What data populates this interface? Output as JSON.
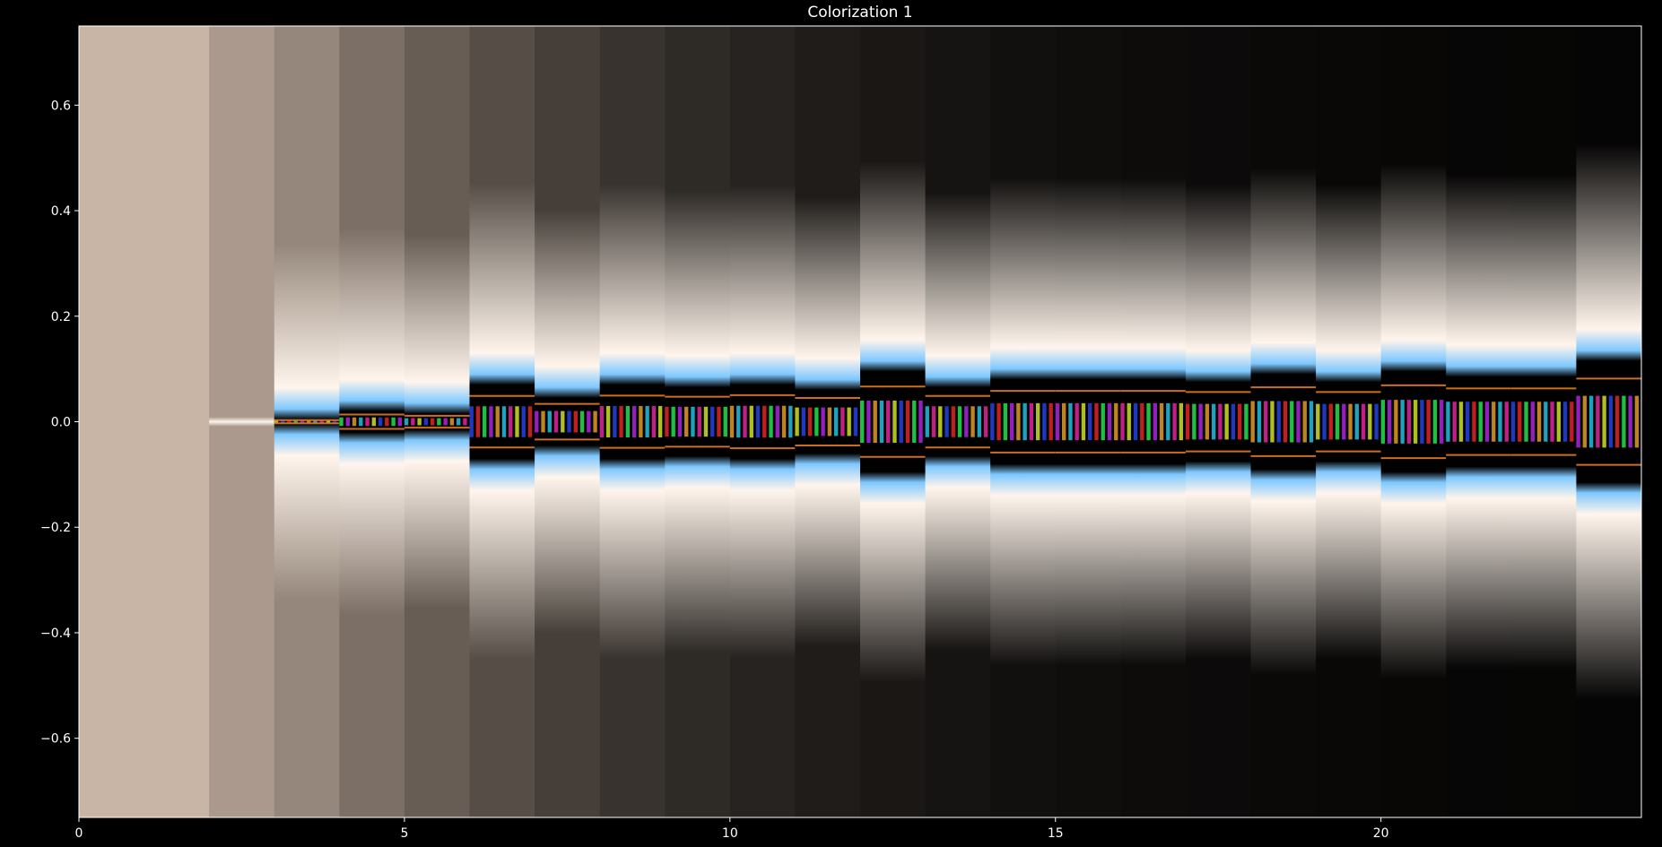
{
  "chart_data": {
    "type": "heatmap",
    "title": "Colorization 1",
    "xlabel": "",
    "ylabel": "",
    "xlim": [
      0,
      24
    ],
    "ylim": [
      -0.75,
      0.75
    ],
    "grid": false,
    "background": "#000000",
    "frame_color": "#ffffff",
    "x_ticks": [
      {
        "value": 0,
        "label": "0"
      },
      {
        "value": 5,
        "label": "5"
      },
      {
        "value": 10,
        "label": "10"
      },
      {
        "value": 15,
        "label": "15"
      },
      {
        "value": 20,
        "label": "20"
      }
    ],
    "y_ticks": [
      {
        "value": 0.6,
        "label": "0.6"
      },
      {
        "value": 0.4,
        "label": "0.4"
      },
      {
        "value": 0.2,
        "label": "0.2"
      },
      {
        "value": 0.0,
        "label": "0.0"
      },
      {
        "value": -0.2,
        "label": "−0.2"
      },
      {
        "value": -0.4,
        "label": "−0.4"
      },
      {
        "value": -0.6,
        "label": "−0.6"
      }
    ],
    "bands": [
      {
        "x0": 0,
        "x1": 2,
        "brightness": 0.78,
        "band_halfwidth": 0.0,
        "spike_height": 0.0
      },
      {
        "x0": 2,
        "x1": 3,
        "brightness": 0.66,
        "band_halfwidth": 0.0,
        "spike_height": 0.0
      },
      {
        "x0": 3,
        "x1": 4,
        "brightness": 0.58,
        "band_halfwidth": 0.004,
        "spike_height": 0.0
      },
      {
        "x0": 4,
        "x1": 5,
        "brightness": 0.48,
        "band_halfwidth": 0.01,
        "spike_height": 0.02
      },
      {
        "x0": 5,
        "x1": 6,
        "brightness": 0.4,
        "band_halfwidth": 0.015,
        "spike_height": 0.0
      },
      {
        "x0": 6,
        "x1": 7,
        "brightness": 0.33,
        "band_halfwidth": 0.045,
        "spike_height": 0.05
      },
      {
        "x0": 7,
        "x1": 8,
        "brightness": 0.27,
        "band_halfwidth": 0.045,
        "spike_height": 0.0
      },
      {
        "x0": 8,
        "x1": 9,
        "brightness": 0.22,
        "band_halfwidth": 0.05,
        "spike_height": 0.04
      },
      {
        "x0": 9,
        "x1": 10,
        "brightness": 0.18,
        "band_halfwidth": 0.055,
        "spike_height": 0.02
      },
      {
        "x0": 10,
        "x1": 11,
        "brightness": 0.15,
        "band_halfwidth": 0.055,
        "spike_height": 0.03
      },
      {
        "x0": 11,
        "x1": 12,
        "brightness": 0.12,
        "band_halfwidth": 0.06,
        "spike_height": 0.0
      },
      {
        "x0": 12,
        "x1": 13,
        "brightness": 0.1,
        "band_halfwidth": 0.065,
        "spike_height": 0.06
      },
      {
        "x0": 13,
        "x1": 14,
        "brightness": 0.085,
        "band_halfwidth": 0.065,
        "spike_height": 0.0
      },
      {
        "x0": 14,
        "x1": 15,
        "brightness": 0.07,
        "band_halfwidth": 0.07,
        "spike_height": 0.02
      },
      {
        "x0": 15,
        "x1": 16,
        "brightness": 0.06,
        "band_halfwidth": 0.07,
        "spike_height": 0.02
      },
      {
        "x0": 16,
        "x1": 17,
        "brightness": 0.05,
        "band_halfwidth": 0.07,
        "spike_height": 0.02
      },
      {
        "x0": 17,
        "x1": 18,
        "brightness": 0.045,
        "band_halfwidth": 0.075,
        "spike_height": 0.0
      },
      {
        "x0": 18,
        "x1": 19,
        "brightness": 0.04,
        "band_halfwidth": 0.075,
        "spike_height": 0.03
      },
      {
        "x0": 19,
        "x1": 20,
        "brightness": 0.035,
        "band_halfwidth": 0.075,
        "spike_height": 0.0
      },
      {
        "x0": 20,
        "x1": 21,
        "brightness": 0.03,
        "band_halfwidth": 0.08,
        "spike_height": 0.03
      },
      {
        "x0": 21,
        "x1": 22,
        "brightness": 0.028,
        "band_halfwidth": 0.08,
        "spike_height": 0.01
      },
      {
        "x0": 22,
        "x1": 23,
        "brightness": 0.025,
        "band_halfwidth": 0.08,
        "spike_height": 0.01
      },
      {
        "x0": 23,
        "x1": 24,
        "brightness": 0.022,
        "band_halfwidth": 0.085,
        "spike_height": 0.06
      }
    ],
    "colors": {
      "tan": "#c9b5a5",
      "white": "#fff5ec",
      "blue": "#7ec8ff",
      "dark": "#000000",
      "spectrum": [
        "#ff2a2a",
        "#ffb02a",
        "#e8ff2a",
        "#2aff5a",
        "#2ad8ff",
        "#2a4bff",
        "#c42aff",
        "#ff2ab4"
      ]
    }
  }
}
